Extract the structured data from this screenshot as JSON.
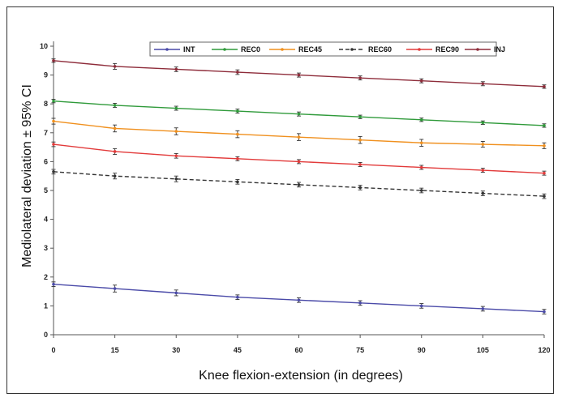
{
  "chart_data": {
    "type": "line",
    "title": "",
    "xlabel": "Knee flexion-extension (in degrees)",
    "ylabel": "Mediolateral deviation ± 95% CI",
    "x": [
      0,
      15,
      30,
      45,
      60,
      75,
      90,
      105,
      120
    ],
    "xticks": [
      "0",
      "15",
      "30",
      "45",
      "60",
      "75",
      "90",
      "105",
      "120"
    ],
    "ylim": [
      0,
      10
    ],
    "yticks": [
      "0",
      "1",
      "2",
      "3",
      "4",
      "5",
      "6",
      "7",
      "8",
      "9",
      "10"
    ],
    "grid": false,
    "legend_position": "top-right",
    "series": [
      {
        "name": "INT",
        "color": "#4a4aa8",
        "dashed": false,
        "values": [
          1.75,
          1.6,
          1.45,
          1.3,
          1.2,
          1.1,
          1.0,
          0.9,
          0.8
        ],
        "ci": [
          0.08,
          0.12,
          0.1,
          0.08,
          0.08,
          0.08,
          0.08,
          0.08,
          0.08
        ]
      },
      {
        "name": "REC0",
        "color": "#2f9a3a",
        "dashed": false,
        "values": [
          8.1,
          7.95,
          7.85,
          7.75,
          7.65,
          7.55,
          7.45,
          7.35,
          7.25
        ],
        "ci": [
          0.06,
          0.07,
          0.07,
          0.07,
          0.07,
          0.06,
          0.06,
          0.06,
          0.06
        ]
      },
      {
        "name": "REC45",
        "color": "#f0901e",
        "dashed": false,
        "values": [
          7.4,
          7.15,
          7.05,
          6.95,
          6.85,
          6.75,
          6.65,
          6.6,
          6.55
        ],
        "ci": [
          0.1,
          0.12,
          0.12,
          0.12,
          0.12,
          0.12,
          0.12,
          0.1,
          0.1
        ]
      },
      {
        "name": "REC60",
        "color": "#333333",
        "dashed": true,
        "values": [
          5.65,
          5.5,
          5.4,
          5.3,
          5.2,
          5.1,
          5.0,
          4.9,
          4.8
        ],
        "ci": [
          0.08,
          0.1,
          0.1,
          0.08,
          0.08,
          0.08,
          0.08,
          0.08,
          0.08
        ]
      },
      {
        "name": "REC90",
        "color": "#e23a3a",
        "dashed": false,
        "values": [
          6.6,
          6.35,
          6.2,
          6.1,
          6.0,
          5.9,
          5.8,
          5.7,
          5.6
        ],
        "ci": [
          0.08,
          0.1,
          0.08,
          0.07,
          0.07,
          0.07,
          0.07,
          0.07,
          0.07
        ]
      },
      {
        "name": "INJ",
        "color": "#8e2c3a",
        "dashed": false,
        "values": [
          9.5,
          9.3,
          9.2,
          9.1,
          9.0,
          8.9,
          8.8,
          8.7,
          8.6
        ],
        "ci": [
          0.06,
          0.1,
          0.08,
          0.08,
          0.07,
          0.07,
          0.07,
          0.07,
          0.06
        ]
      }
    ]
  }
}
